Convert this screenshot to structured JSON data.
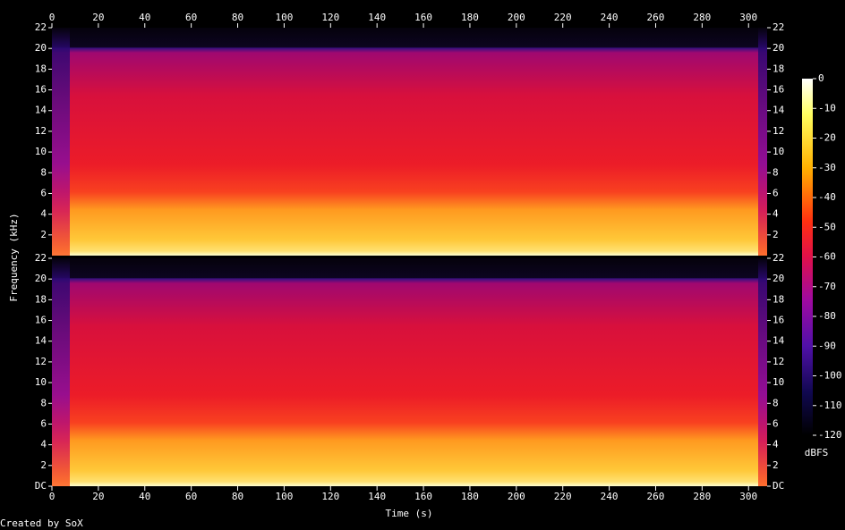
{
  "chart_data": {
    "type": "spectrogram",
    "xlabel": "Time (s)",
    "ylabel": "Frequency (kHz)",
    "xlim": [
      0,
      308
    ],
    "xticks": [
      0,
      20,
      40,
      60,
      80,
      100,
      120,
      140,
      160,
      180,
      200,
      220,
      240,
      260,
      280,
      300
    ],
    "channels": [
      {
        "ylim": [
          0,
          22
        ],
        "yticks": [
          2,
          4,
          6,
          8,
          10,
          12,
          14,
          16,
          18,
          20,
          22
        ]
      },
      {
        "ylim": [
          0,
          22
        ],
        "yticks": [
          {
            "value": 0,
            "label": "DC"
          },
          2,
          4,
          6,
          8,
          10,
          12,
          14,
          16,
          18,
          20,
          22
        ]
      }
    ],
    "colorbar": {
      "label": "dBFS",
      "lim": [
        -120,
        0
      ],
      "ticks": [
        0,
        -10,
        -20,
        -30,
        -40,
        -50,
        -60,
        -70,
        -80,
        -90,
        -100,
        -110,
        -120
      ]
    },
    "footer": "Created by SoX"
  }
}
